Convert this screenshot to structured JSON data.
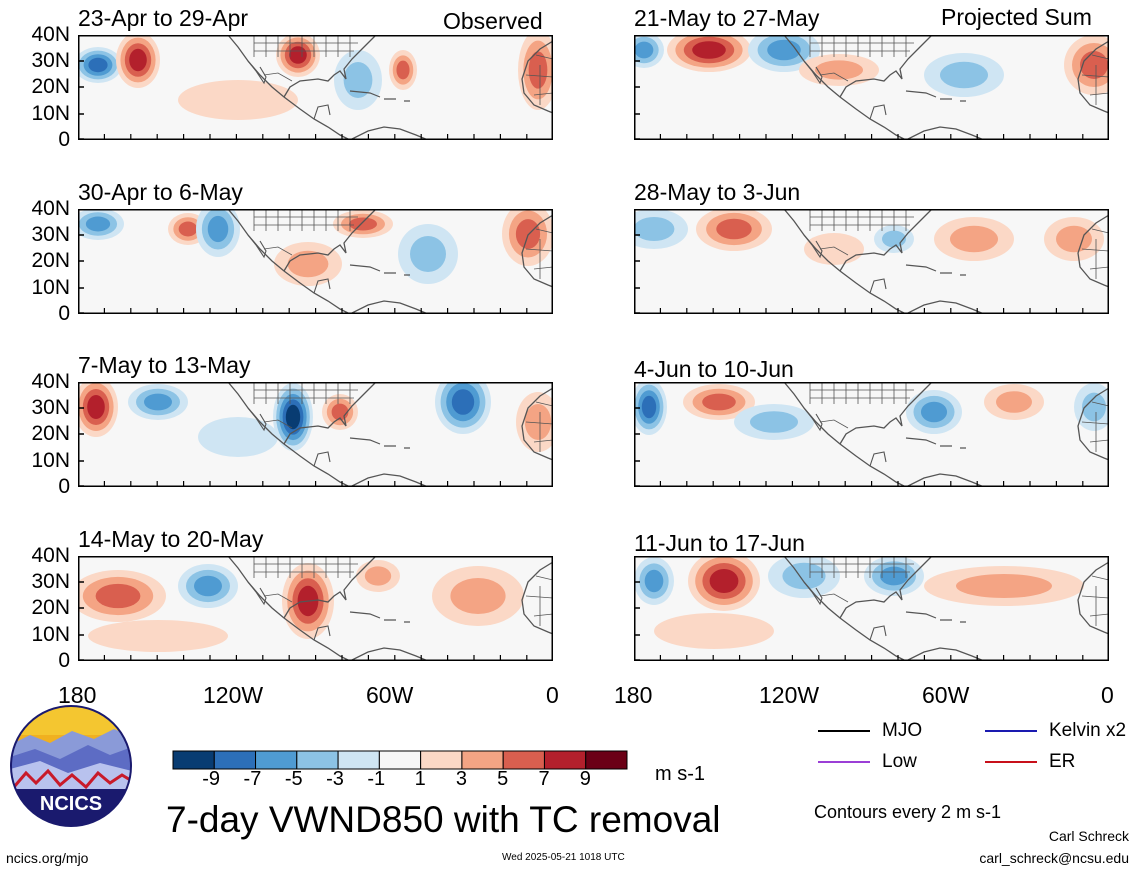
{
  "observed_label": "Observed",
  "projected_label": "Projected Sum",
  "left_panels": [
    "23-Apr to 29-Apr",
    "30-Apr to 6-May",
    "7-May to 13-May",
    "14-May to 20-May"
  ],
  "right_panels": [
    "21-May to 27-May",
    "28-May to 3-Jun",
    "4-Jun to 10-Jun",
    "11-Jun to 17-Jun"
  ],
  "y_ticks": [
    "40N",
    "30N",
    "20N",
    "10N",
    "0"
  ],
  "x_ticks": [
    "180",
    "120W",
    "60W",
    "0"
  ],
  "colorbar": {
    "colors": [
      "#083c72",
      "#2c6fb8",
      "#4f9bd2",
      "#8cc3e5",
      "#cfe5f3",
      "#f7f7f7",
      "#fbd8c6",
      "#f4a484",
      "#d95f4f",
      "#b3202c",
      "#6b0016"
    ],
    "labels": [
      "-9",
      "-7",
      "-5",
      "-3",
      "-1",
      "1",
      "3",
      "5",
      "7",
      "9"
    ],
    "units": "m s-1"
  },
  "title": "7-day VWND850 with TC removal",
  "legend": [
    {
      "label": "MJO",
      "color": "#000000"
    },
    {
      "label": "Kelvin x2",
      "color": "#1a1ab0"
    },
    {
      "label": "Low",
      "color": "#9b3fd6"
    },
    {
      "label": "ER",
      "color": "#c8101a"
    }
  ],
  "contour_note": "Contours every 2 m s-1",
  "logo_text": "NCICS",
  "footer_left": "ncics.org/mjo",
  "footer_center": "Wed 2025-05-21 1018 UTC",
  "author": "Carl Schreck",
  "email": "carl_schreck@ncsu.edu"
}
